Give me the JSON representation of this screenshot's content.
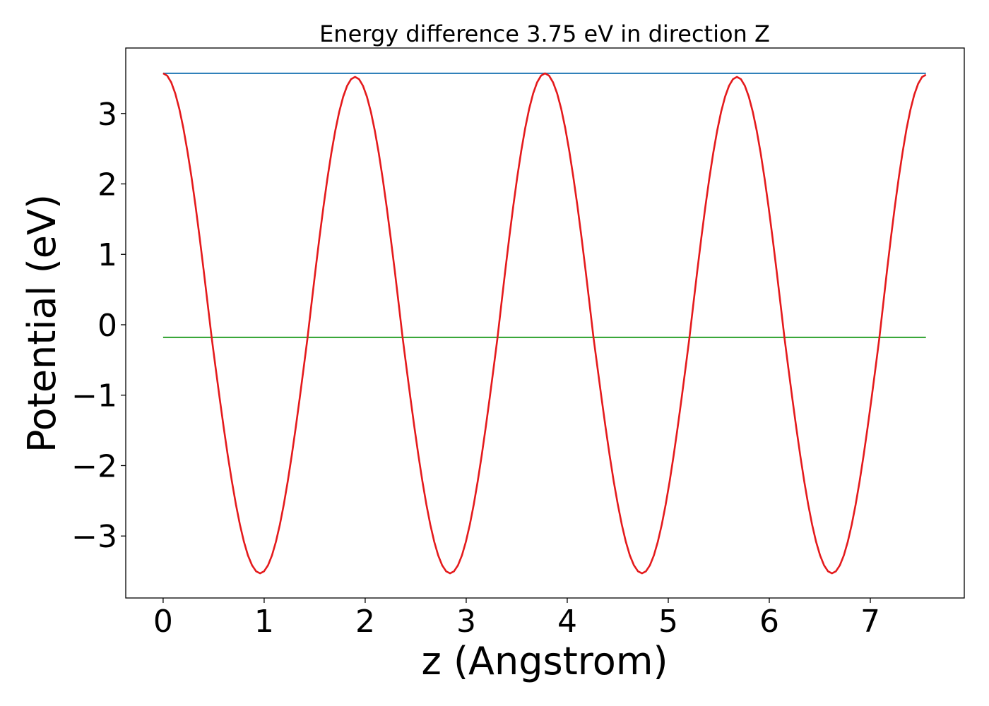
{
  "chart_data": {
    "type": "line",
    "title": "Energy difference 3.75 eV in direction Z",
    "xlabel": "z (Angstrom)",
    "ylabel": "Potential (eV)",
    "xlim": [
      -0.37,
      7.93
    ],
    "ylim": [
      -3.88,
      3.93
    ],
    "xticks": [
      0,
      1,
      2,
      3,
      4,
      5,
      6,
      7
    ],
    "xtick_labels": [
      "0",
      "1",
      "2",
      "3",
      "4",
      "5",
      "6",
      "7"
    ],
    "yticks": [
      -3,
      -2,
      -1,
      0,
      1,
      2,
      3
    ],
    "ytick_labels": [
      "−3",
      "−2",
      "−1",
      "0",
      "1",
      "2",
      "3"
    ],
    "grid": false,
    "series": [
      {
        "color": "#1f77b4",
        "x": [
          0,
          7.55
        ],
        "y": [
          3.57,
          3.57
        ]
      },
      {
        "color": "#2ca02c",
        "x": [
          0,
          7.55
        ],
        "y": [
          -0.18,
          -0.18
        ]
      },
      {
        "color": "#e41a1c",
        "x": [
          0,
          0.48,
          0.96,
          1.43,
          1.9,
          2.37,
          2.84,
          3.31,
          3.78,
          4.26,
          4.74,
          5.21,
          5.68,
          6.15,
          6.62,
          7.09,
          7.55
        ],
        "y": [
          3.57,
          -0.18,
          -3.53,
          -0.18,
          3.52,
          -0.18,
          -3.53,
          -0.18,
          3.57,
          -0.18,
          -3.53,
          -0.18,
          3.52,
          -0.18,
          -3.53,
          -0.18,
          3.55
        ]
      }
    ]
  }
}
